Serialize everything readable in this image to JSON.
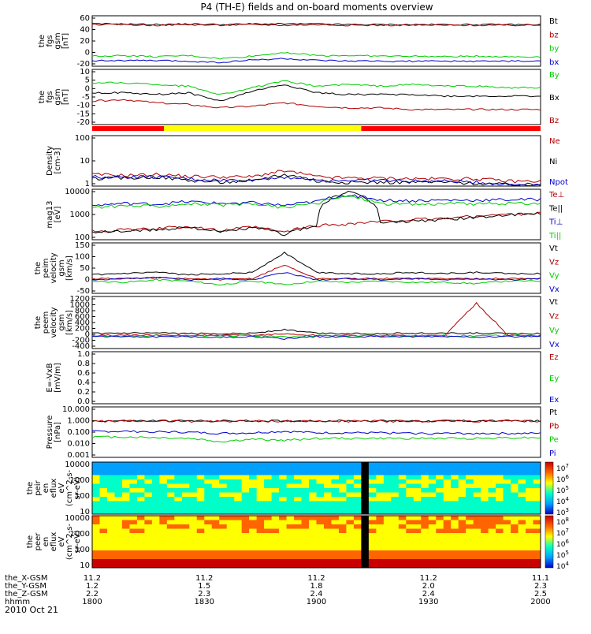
{
  "title": "P4 (TH-E) fields and on-board moments overview",
  "date": "2010 Oct 21",
  "time_axis": {
    "ticks": [
      "1800",
      "1830",
      "1900",
      "1930",
      "2000"
    ],
    "rows": [
      {
        "label": "the_X-GSM",
        "values": [
          "11.2",
          "11.2",
          "11.2",
          "11.2",
          "11.1"
        ]
      },
      {
        "label": "the_Y-GSM",
        "values": [
          "1.2",
          "1.5",
          "1.8",
          "2.0",
          "2.3"
        ]
      },
      {
        "label": "the_Z-GSM",
        "values": [
          "2.2",
          "2.3",
          "2.4",
          "2.4",
          "2.5"
        ]
      },
      {
        "label": "hhmm",
        "values": [
          "1800",
          "1830",
          "1900",
          "1930",
          "2000"
        ]
      }
    ]
  },
  "chart_data": [
    {
      "type": "line",
      "id": "fgs_gsm",
      "ylabel": [
        "the",
        "fgs",
        "gsm",
        "[nT]"
      ],
      "yticks": [
        "60",
        "40",
        "20",
        "0",
        "-20"
      ],
      "ylim": [
        -20,
        60
      ],
      "series": [
        {
          "name": "Bt",
          "color": "#000000",
          "values": [
            47,
            47,
            46,
            47,
            46,
            47,
            47,
            47,
            46,
            46,
            46,
            46,
            46,
            46,
            46
          ]
        },
        {
          "name": "bz",
          "color": "#b00000",
          "values": [
            46,
            46,
            45,
            46,
            45,
            46,
            45,
            46,
            45,
            45,
            45,
            45,
            45,
            45,
            45
          ]
        },
        {
          "name": "by",
          "color": "#00cc00",
          "values": [
            -4,
            -3,
            -5,
            -3,
            -8,
            -4,
            2,
            -3,
            -3,
            -4,
            -4,
            -5,
            -4,
            -5,
            -5
          ]
        },
        {
          "name": "bx",
          "color": "#0000cc",
          "values": [
            -11,
            -11,
            -11,
            -12,
            -14,
            -10,
            -8,
            -11,
            -12,
            -12,
            -12,
            -12,
            -12,
            -12,
            -12
          ]
        }
      ]
    },
    {
      "type": "line",
      "id": "fgs_gsm_zoom",
      "ylabel": [
        "the",
        "fgs",
        "gsm",
        "[nT]"
      ],
      "yticks": [
        "10",
        "5",
        "0",
        "-5",
        "-10",
        "-15",
        "-20"
      ],
      "ylim": [
        -23,
        10
      ],
      "series": [
        {
          "name": "By",
          "color": "#00cc00",
          "values": [
            2,
            2,
            1,
            0,
            -5,
            -1,
            3,
            0,
            1,
            0,
            1,
            0,
            0,
            -1,
            -1
          ]
        },
        {
          "name": "Bx",
          "color": "#000000",
          "values": [
            -4,
            -4,
            -5,
            -4,
            -9,
            -3,
            1,
            -4,
            -5,
            -5,
            -5,
            -6,
            -6,
            -6,
            -6
          ]
        },
        {
          "name": "Bz",
          "color": "#b00000",
          "values": [
            -9,
            -8,
            -10,
            -11,
            -13,
            -12,
            -10,
            -12,
            -13,
            -13,
            -14,
            -14,
            -14,
            -14,
            -14
          ]
        }
      ]
    },
    {
      "type": "line",
      "id": "density",
      "ylabel": [
        "Density",
        "[cm-3]"
      ],
      "yticks": [
        "100",
        "10",
        "1"
      ],
      "ylim": [
        0.5,
        200
      ],
      "log": true,
      "series": [
        {
          "name": "Ne",
          "color": "#b00000",
          "values": [
            2,
            1.8,
            2,
            1.6,
            1.5,
            1.5,
            3,
            1.5,
            1.3,
            1.3,
            1.2,
            1.2,
            1.2,
            0.9,
            0.9
          ]
        },
        {
          "name": "Ni",
          "color": "#000000",
          "values": [
            1.2,
            1.3,
            1.5,
            1.0,
            0.8,
            0.9,
            2,
            0.9,
            0.8,
            0.8,
            0.8,
            0.8,
            0.7,
            0.6,
            0.6
          ]
        },
        {
          "name": "Npot",
          "color": "#0000cc",
          "values": [
            1.5,
            1.5,
            1.5,
            1.2,
            1.0,
            1.0,
            1.5,
            1.0,
            1.0,
            1.0,
            0.9,
            0.9,
            0.8,
            0.6,
            0.6
          ]
        }
      ]
    },
    {
      "type": "line",
      "id": "temperature",
      "ylabel": [
        "mag13",
        "[eV]"
      ],
      "yticks": [
        "10000",
        "1000",
        "100"
      ],
      "ylim": [
        20,
        12000
      ],
      "log": true,
      "series": [
        {
          "name": "Te⊥",
          "color": "#b00000",
          "values": [
            60,
            70,
            80,
            110,
            60,
            100,
            50,
            120,
            150,
            200,
            250,
            300,
            400,
            500,
            600
          ]
        },
        {
          "name": "Te||",
          "color": "#000000",
          "values": [
            50,
            60,
            70,
            100,
            50,
            90,
            40,
            110,
            8000,
            160,
            220,
            260,
            350,
            450,
            550
          ]
        },
        {
          "name": "Ti⊥",
          "color": "#0000cc",
          "values": [
            1500,
            2000,
            1800,
            2500,
            2000,
            2200,
            1500,
            2500,
            6000,
            3000,
            2800,
            3000,
            3000,
            3200,
            3300
          ]
        },
        {
          "name": "Ti||",
          "color": "#00cc00",
          "values": [
            1200,
            1500,
            1400,
            2000,
            1600,
            1800,
            1200,
            2000,
            5000,
            2000,
            1800,
            2000,
            1900,
            2000,
            2000
          ]
        }
      ]
    },
    {
      "type": "line",
      "id": "peim_velocity",
      "ylabel": [
        "the",
        "peim",
        "velocity",
        "gsm",
        "[km/s]"
      ],
      "yticks": [
        "150",
        "100",
        "50",
        "0",
        "-50"
      ],
      "ylim": [
        -55,
        150
      ],
      "series": [
        {
          "name": "Vt",
          "color": "#000000",
          "values": [
            20,
            25,
            30,
            20,
            25,
            30,
            110,
            30,
            25,
            25,
            30,
            25,
            30,
            25,
            25
          ]
        },
        {
          "name": "Vz",
          "color": "#b00000",
          "values": [
            5,
            5,
            8,
            5,
            0,
            5,
            60,
            5,
            5,
            5,
            5,
            5,
            5,
            5,
            5
          ]
        },
        {
          "name": "Vy",
          "color": "#00cc00",
          "values": [
            -5,
            -10,
            0,
            -5,
            -20,
            -5,
            -20,
            -5,
            -10,
            -5,
            -10,
            -10,
            -15,
            -5,
            -5
          ]
        },
        {
          "name": "Vx",
          "color": "#0000cc",
          "values": [
            0,
            5,
            10,
            0,
            5,
            0,
            30,
            0,
            5,
            0,
            5,
            0,
            5,
            0,
            5
          ]
        }
      ]
    },
    {
      "type": "line",
      "id": "peem_velocity",
      "ylabel": [
        "the",
        "peem",
        "velocity",
        "gsm",
        "[km/s]"
      ],
      "yticks": [
        "1200",
        "1000",
        "800",
        "600",
        "400",
        "200",
        "0",
        "-200",
        "-400"
      ],
      "ylim": [
        -400,
        1200
      ],
      "series": [
        {
          "name": "Vt",
          "color": "#000000",
          "values": [
            60,
            70,
            70,
            60,
            60,
            70,
            180,
            70,
            60,
            60,
            70,
            70,
            70,
            60,
            60
          ]
        },
        {
          "name": "Vz",
          "color": "#b00000",
          "values": [
            0,
            10,
            10,
            0,
            0,
            10,
            50,
            0,
            0,
            0,
            0,
            0,
            1000,
            0,
            0
          ]
        },
        {
          "name": "Vy",
          "color": "#00cc00",
          "values": [
            0,
            -20,
            0,
            -10,
            0,
            -10,
            -40,
            0,
            -10,
            0,
            -10,
            0,
            -10,
            0,
            -10
          ]
        },
        {
          "name": "Vx",
          "color": "#0000cc",
          "values": [
            -20,
            -30,
            -40,
            -30,
            -60,
            -30,
            -100,
            -30,
            -40,
            -30,
            -40,
            -30,
            -40,
            -30,
            -30
          ]
        }
      ]
    },
    {
      "type": "line",
      "id": "efield",
      "ylabel": [
        "E=-VxB",
        "[mV/m]"
      ],
      "yticks": [
        "1.0",
        "0.8",
        "0.6",
        "0.4",
        "0.2",
        "0.0"
      ],
      "ylim": [
        0,
        1
      ],
      "series": [
        {
          "name": "Ez",
          "color": "#b00000",
          "values": []
        },
        {
          "name": "Ey",
          "color": "#00cc00",
          "values": []
        },
        {
          "name": "Ex",
          "color": "#0000cc",
          "values": []
        }
      ]
    },
    {
      "type": "line",
      "id": "pressure",
      "ylabel": [
        "Pressure",
        "[nPa]"
      ],
      "yticks": [
        "10.000",
        "1.000",
        "0.100",
        "0.010",
        "0.001"
      ],
      "ylim": [
        0.0007,
        15
      ],
      "log": true,
      "series": [
        {
          "name": "Pt",
          "color": "#000000",
          "values": [
            0.95,
            0.95,
            0.95,
            0.95,
            0.95,
            0.95,
            0.95,
            0.95,
            0.95,
            0.95,
            0.95,
            0.95,
            0.95,
            0.95,
            0.95
          ]
        },
        {
          "name": "Pb",
          "color": "#b00000",
          "values": [
            0.9,
            0.9,
            0.9,
            0.9,
            0.9,
            0.9,
            0.9,
            0.9,
            0.9,
            0.9,
            0.9,
            0.9,
            0.9,
            0.9,
            0.9
          ]
        },
        {
          "name": "Pe",
          "color": "#00cc00",
          "values": [
            0.04,
            0.04,
            0.035,
            0.03,
            0.015,
            0.025,
            0.02,
            0.03,
            0.03,
            0.03,
            0.03,
            0.03,
            0.03,
            0.035,
            0.035
          ]
        },
        {
          "name": "Pi",
          "color": "#0000cc",
          "values": [
            0.12,
            0.12,
            0.11,
            0.1,
            0.08,
            0.09,
            0.12,
            0.09,
            0.09,
            0.09,
            0.08,
            0.08,
            0.08,
            0.08,
            0.08
          ]
        }
      ]
    },
    {
      "type": "heatmap",
      "id": "peir_spectrogram",
      "ylabel": [
        "the",
        "peir",
        "en",
        "eflux",
        "eV",
        "(cm^2-s-",
        "sr-eV)"
      ],
      "yticks": [
        "10000",
        "1000",
        "100",
        "10"
      ],
      "colorbar_ticks": [
        "10^7",
        "10^6",
        "10^5",
        "10^4",
        "10^3"
      ],
      "colormap": [
        "#0000c8",
        "#00a0ff",
        "#00ffc8",
        "#ffff00",
        "#ff6400",
        "#c80000"
      ],
      "data_gap_fraction": [
        0.59,
        0.61
      ]
    },
    {
      "type": "heatmap",
      "id": "peer_spectrogram",
      "ylabel": [
        "the",
        "peer",
        "en",
        "eflux",
        "eV",
        "(cm^2-s-",
        "sr-eV)"
      ],
      "yticks": [
        "10000",
        "1000",
        "100",
        "10"
      ],
      "colorbar_ticks": [
        "10^8",
        "10^7",
        "10^6",
        "10^5",
        "10^4"
      ],
      "colormap": [
        "#0000c8",
        "#00a0ff",
        "#00ffc8",
        "#ffff00",
        "#ff6400",
        "#c80000"
      ],
      "data_gap_fraction": [
        0.59,
        0.61
      ]
    }
  ],
  "mode_bar": [
    {
      "color": "#ff0000",
      "from": 0.0,
      "to": 0.16
    },
    {
      "color": "#ffff00",
      "from": 0.16,
      "to": 0.6
    },
    {
      "color": "#ff0000",
      "from": 0.6,
      "to": 1.0
    }
  ]
}
